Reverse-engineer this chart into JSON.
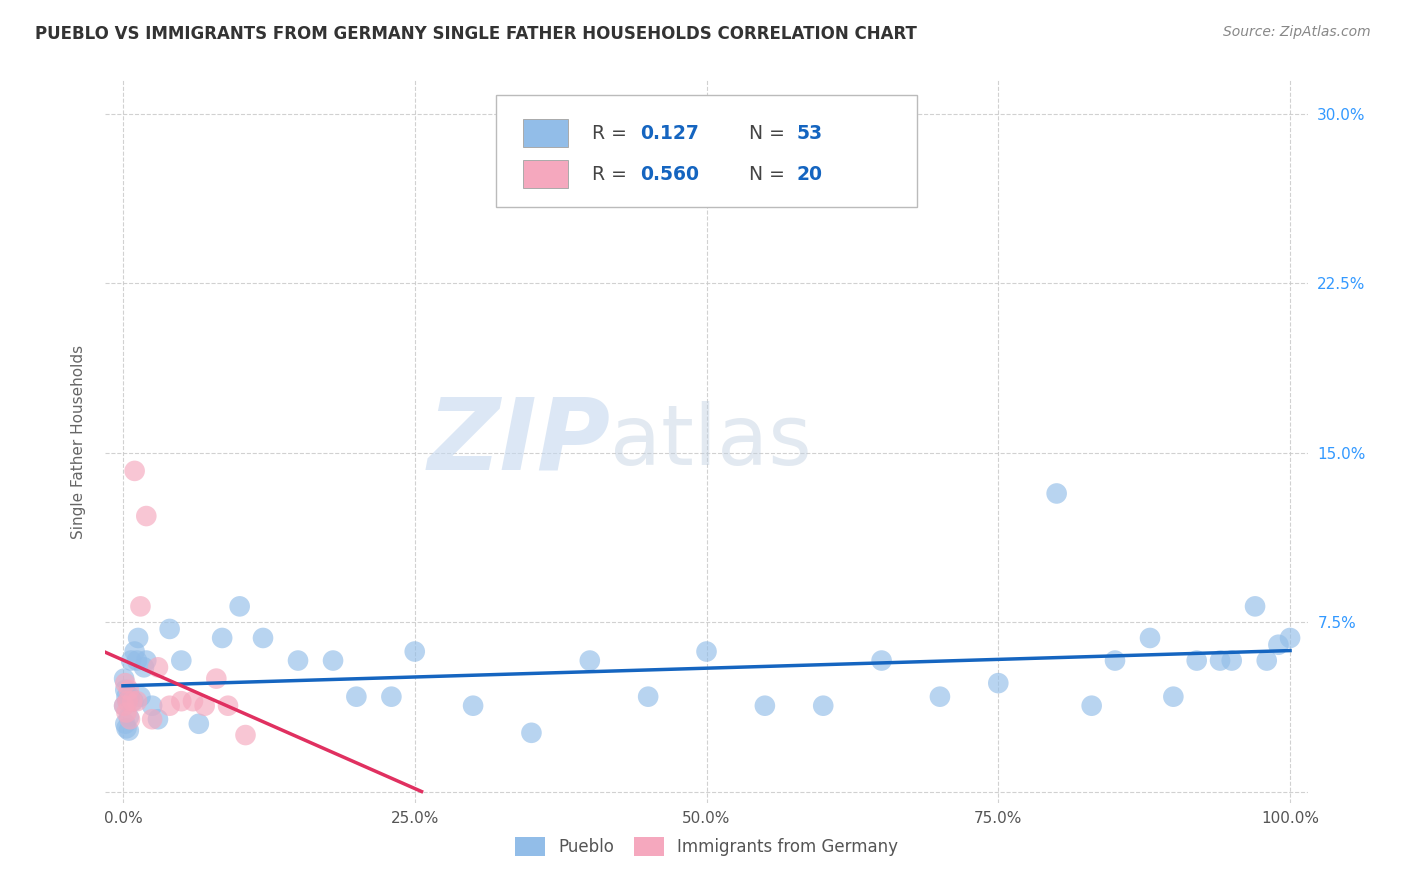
{
  "title": "PUEBLO VS IMMIGRANTS FROM GERMANY SINGLE FATHER HOUSEHOLDS CORRELATION CHART",
  "source": "Source: ZipAtlas.com",
  "ylabel": "Single Father Households",
  "watermark_zip": "ZIP",
  "watermark_atlas": "atlas",
  "xlim": [
    -0.015,
    1.015
  ],
  "ylim": [
    -0.005,
    0.315
  ],
  "xticks": [
    0.0,
    0.25,
    0.5,
    0.75,
    1.0
  ],
  "xticklabels": [
    "0.0%",
    "25.0%",
    "50.0%",
    "75.0%",
    "100.0%"
  ],
  "yticks": [
    0.0,
    0.075,
    0.15,
    0.225,
    0.3
  ],
  "yticklabels_right": [
    "",
    "7.5%",
    "15.0%",
    "22.5%",
    "30.0%"
  ],
  "pueblo_color": "#92bde8",
  "germany_color": "#f5a8be",
  "trend_pueblo_color": "#1565c0",
  "trend_germany_color": "#e03060",
  "R_pueblo": 0.127,
  "N_pueblo": 53,
  "R_germany": 0.56,
  "N_germany": 20,
  "legend_color_R_N": "#1565c0",
  "legend_color_label": "#333333",
  "pueblo_x": [
    0.001,
    0.001,
    0.002,
    0.002,
    0.003,
    0.003,
    0.004,
    0.005,
    0.005,
    0.006,
    0.007,
    0.009,
    0.01,
    0.012,
    0.013,
    0.015,
    0.018,
    0.02,
    0.025,
    0.03,
    0.04,
    0.05,
    0.065,
    0.085,
    0.1,
    0.12,
    0.15,
    0.18,
    0.2,
    0.23,
    0.25,
    0.3,
    0.35,
    0.4,
    0.45,
    0.5,
    0.55,
    0.6,
    0.65,
    0.7,
    0.75,
    0.8,
    0.83,
    0.85,
    0.88,
    0.9,
    0.92,
    0.94,
    0.95,
    0.97,
    0.98,
    0.99,
    1.0
  ],
  "pueblo_y": [
    0.05,
    0.038,
    0.045,
    0.03,
    0.042,
    0.028,
    0.04,
    0.033,
    0.027,
    0.042,
    0.058,
    0.04,
    0.062,
    0.058,
    0.068,
    0.042,
    0.055,
    0.058,
    0.038,
    0.032,
    0.072,
    0.058,
    0.03,
    0.068,
    0.082,
    0.068,
    0.058,
    0.058,
    0.042,
    0.042,
    0.062,
    0.038,
    0.026,
    0.058,
    0.042,
    0.062,
    0.038,
    0.038,
    0.058,
    0.042,
    0.048,
    0.132,
    0.038,
    0.058,
    0.068,
    0.042,
    0.058,
    0.058,
    0.058,
    0.082,
    0.058,
    0.065,
    0.068
  ],
  "germany_x": [
    0.001,
    0.002,
    0.003,
    0.004,
    0.005,
    0.006,
    0.008,
    0.01,
    0.012,
    0.015,
    0.02,
    0.025,
    0.03,
    0.04,
    0.05,
    0.06,
    0.07,
    0.08,
    0.09,
    0.105
  ],
  "germany_y": [
    0.038,
    0.048,
    0.035,
    0.04,
    0.045,
    0.032,
    0.04,
    0.142,
    0.04,
    0.082,
    0.122,
    0.032,
    0.055,
    0.038,
    0.04,
    0.04,
    0.038,
    0.05,
    0.038,
    0.025
  ]
}
